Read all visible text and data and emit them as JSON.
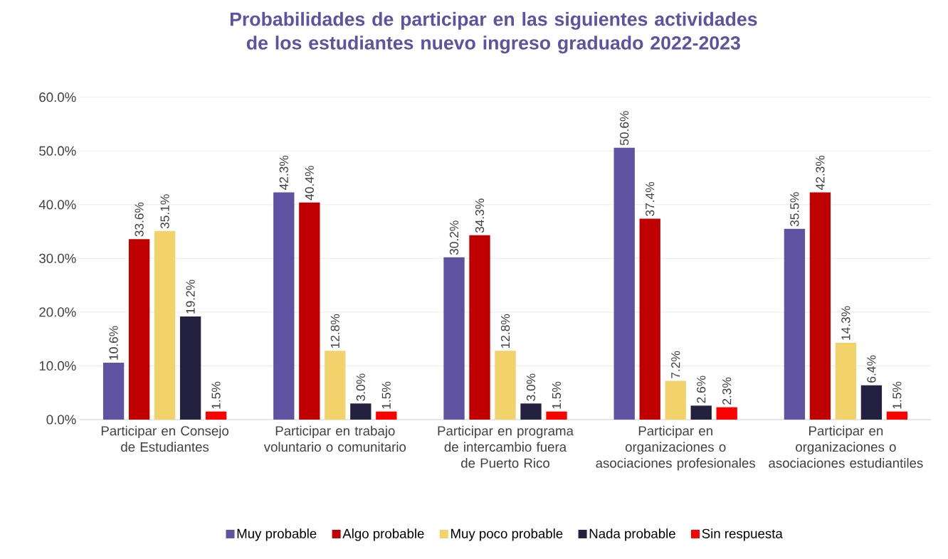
{
  "chart_data": {
    "type": "bar",
    "title": "Probabilidades de participar en las siguientes actividades de los estudiantes nuevo ingreso graduado 2022-2023",
    "categories": [
      "Participar en Consejo de Estudiantes",
      "Participar en trabajo voluntario o comunitario",
      "Participar en programa de intercambio fuera de Puerto Rico",
      "Participar en organizaciones o asociaciones profesionales",
      "Participar en organizaciones o asociaciones estudiantiles"
    ],
    "series": [
      {
        "name": "Muy probable",
        "color": "#5f52a0",
        "values": [
          10.6,
          42.3,
          30.2,
          50.6,
          35.5
        ],
        "value_labels": [
          "10.6%",
          "42.3%",
          "30.2%",
          "50.6%",
          "35.5%"
        ]
      },
      {
        "name": "Algo probable",
        "color": "#c00000",
        "values": [
          33.6,
          40.4,
          34.3,
          37.4,
          42.3
        ],
        "value_labels": [
          "33.6%",
          "40.4%",
          "34.3%",
          "37.4%",
          "42.3%"
        ]
      },
      {
        "name": "Muy poco probable",
        "color": "#f2d26b",
        "values": [
          35.1,
          12.8,
          12.8,
          7.2,
          14.3
        ],
        "value_labels": [
          "35.1%",
          "12.8%",
          "12.8%",
          "7.2%",
          "14.3%"
        ]
      },
      {
        "name": "Nada probable",
        "color": "#23213f",
        "values": [
          19.2,
          3.0,
          3.0,
          2.6,
          6.4
        ],
        "value_labels": [
          "19.2%",
          "3.0%",
          "3.0%",
          "2.6%",
          "6.4%"
        ]
      },
      {
        "name": "Sin respuesta",
        "color": "#ff0000",
        "values": [
          1.5,
          1.5,
          1.5,
          2.3,
          1.5
        ],
        "value_labels": [
          "1.5%",
          "1.5%",
          "1.5%",
          "2.3%",
          "1.5%"
        ]
      }
    ],
    "ylim": [
      0,
      60
    ],
    "yticks": [
      {
        "value": 0,
        "label": "0.0%"
      },
      {
        "value": 10,
        "label": "10.0%"
      },
      {
        "value": 20,
        "label": "20.0%"
      },
      {
        "value": 30,
        "label": "30.0%"
      },
      {
        "value": 40,
        "label": "40.0%"
      },
      {
        "value": 50,
        "label": "50.0%"
      },
      {
        "value": 60,
        "label": "60.0%"
      }
    ],
    "grid": "y",
    "legend": "bottom"
  }
}
